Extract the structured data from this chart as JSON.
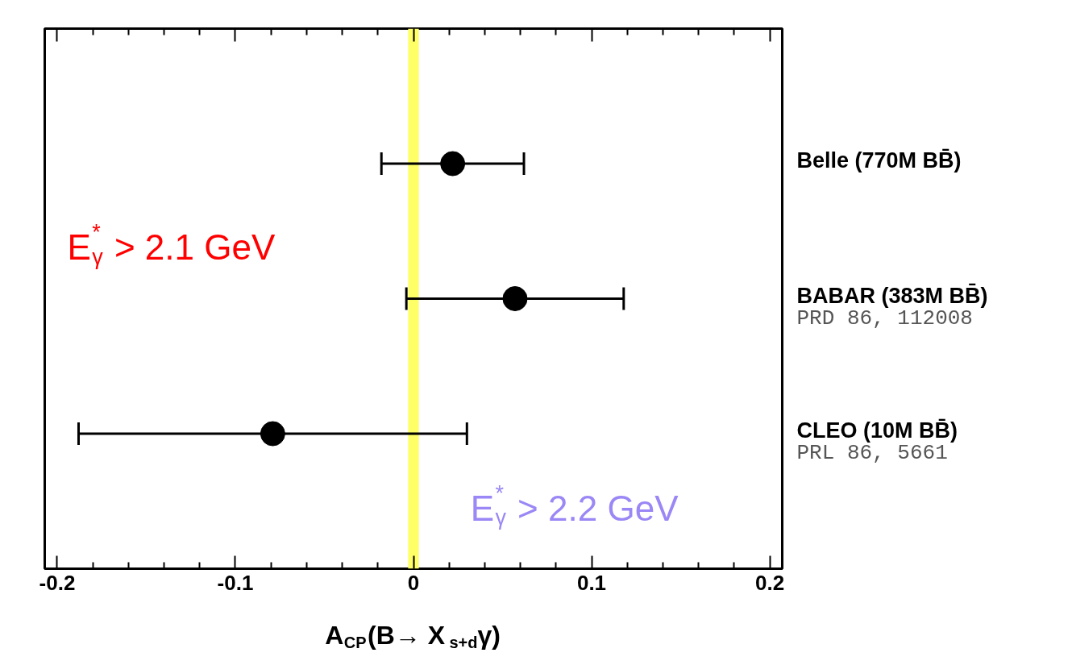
{
  "chart_data": {
    "type": "scatter",
    "orientation": "horizontal",
    "categories": [
      "Belle (770M BB̄)",
      "BABAR (383M BB̄)",
      "CLEO (10M BB̄)"
    ],
    "values": [
      0.022,
      0.057,
      -0.079
    ],
    "errors": [
      0.04,
      0.061,
      0.109
    ],
    "color": "#000000",
    "marker": "circle",
    "xlim": [
      -0.207,
      0.207
    ],
    "xticks": [
      -0.2,
      {
        "value": -0.18,
        "label": null
      },
      {
        "value": -0.16,
        "label": null
      },
      {
        "value": -0.14,
        "label": null
      },
      {
        "value": -0.12,
        "label": null
      },
      -0.1,
      {
        "value": -0.08,
        "label": null
      },
      {
        "value": -0.06,
        "label": null
      },
      {
        "value": -0.04,
        "label": null
      },
      {
        "value": -0.02,
        "label": null
      },
      0,
      {
        "value": 0.02,
        "label": null
      },
      {
        "value": 0.04,
        "label": null
      },
      {
        "value": 0.06,
        "label": null
      },
      {
        "value": 0.08,
        "label": null
      },
      0.1,
      {
        "value": 0.12,
        "label": null
      },
      {
        "value": 0.14,
        "label": null
      },
      {
        "value": 0.16,
        "label": null
      },
      {
        "value": 0.18,
        "label": null
      },
      0.2
    ],
    "xlabel": "A$_{CP}$(B→ X$_{s+d}$γ)",
    "bands": [
      {
        "axis": "x",
        "from": -0.003,
        "to": 0.003,
        "color": "#ffff66"
      }
    ],
    "annotations": [
      "E$_{γ}$$^{*}$ > 2.1 GeV",
      "E$_{γ}$$^{*}$ > 2.2 GeV",
      "PRD 86, 112008",
      "PRL 86, 5661"
    ]
  }
}
